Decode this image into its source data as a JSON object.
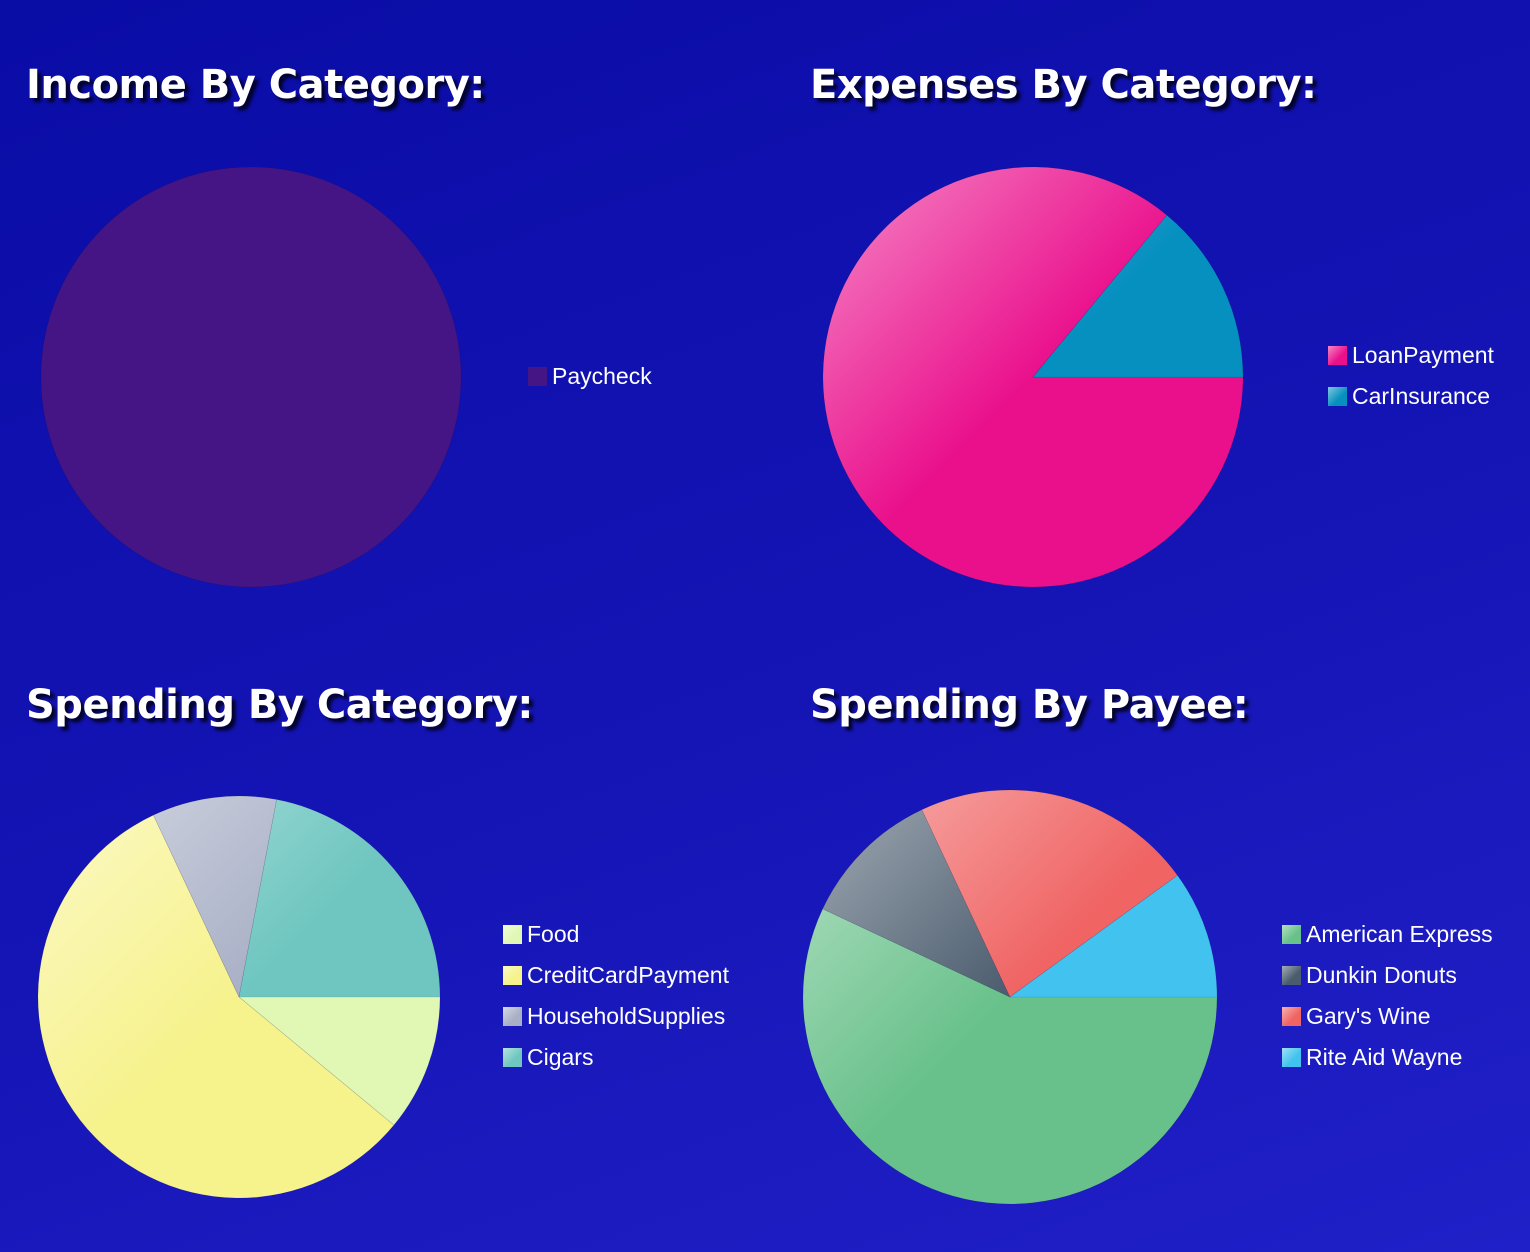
{
  "chart_data": [
    {
      "type": "pie",
      "title": "Income By Category:",
      "categories": [
        "Paycheck"
      ],
      "values": [
        100
      ],
      "colors": [
        "#461585"
      ],
      "legend_position": "right"
    },
    {
      "type": "pie",
      "title": "Expenses By Category:",
      "categories": [
        "LoanPayment",
        "CarInsurance"
      ],
      "values": [
        86,
        14
      ],
      "colors": [
        "#ea108c",
        "#0690c0"
      ],
      "legend_position": "right"
    },
    {
      "type": "pie",
      "title": "Spending By Category:",
      "categories": [
        "Food",
        "CreditCardPayment",
        "HouseholdSupplies",
        "Cigars"
      ],
      "values": [
        11,
        57,
        10,
        22
      ],
      "colors": [
        "#e0f8b4",
        "#f6f28c",
        "#a9b0c6",
        "#6fc6c0"
      ],
      "legend_position": "right"
    },
    {
      "type": "pie",
      "title": "Spending By Payee:",
      "categories": [
        "American Express",
        "Dunkin Donuts",
        "Gary's Wine",
        "Rite Aid Wayne"
      ],
      "values": [
        57,
        11,
        22,
        10
      ],
      "colors": [
        "#68c18a",
        "#4b5c6e",
        "#f06464",
        "#42c2ee"
      ],
      "legend_position": "right"
    }
  ]
}
